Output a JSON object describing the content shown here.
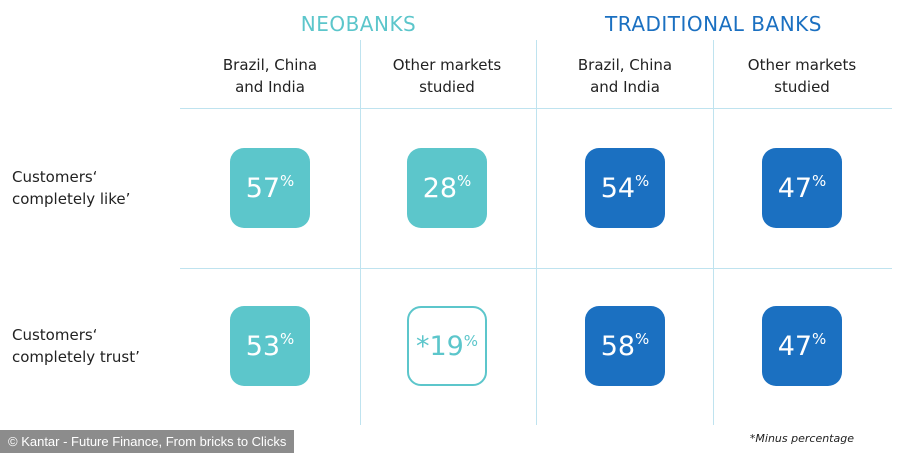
{
  "groups": [
    {
      "title": "NEOBANKS",
      "color": "#5cc6cb",
      "columns": [
        {
          "label": [
            "Brazil, China",
            "and India"
          ]
        },
        {
          "label": [
            "Other markets",
            "studied"
          ]
        }
      ]
    },
    {
      "title": "TRADITIONAL BANKS",
      "color": "#1b70c1",
      "columns": [
        {
          "label": [
            "Brazil, China",
            "and India"
          ]
        },
        {
          "label": [
            "Other markets",
            "studied"
          ]
        }
      ]
    }
  ],
  "rows": [
    {
      "label": [
        "Customers‘",
        "completely like’"
      ],
      "cells": [
        {
          "number": "57",
          "unit": "%"
        },
        {
          "number": "28",
          "unit": "%"
        },
        {
          "number": "54",
          "unit": "%"
        },
        {
          "number": "47",
          "unit": "%"
        }
      ]
    },
    {
      "label": [
        "Customers‘",
        "completely trust’"
      ],
      "cells": [
        {
          "number": "53",
          "unit": "%"
        },
        {
          "number": "*19",
          "unit": "%",
          "style": "outline"
        },
        {
          "number": "58",
          "unit": "%"
        },
        {
          "number": "47",
          "unit": "%"
        }
      ]
    }
  ],
  "footnote": "*Minus percentage",
  "credit": "© Kantar - Future Finance, From bricks to Clicks"
}
